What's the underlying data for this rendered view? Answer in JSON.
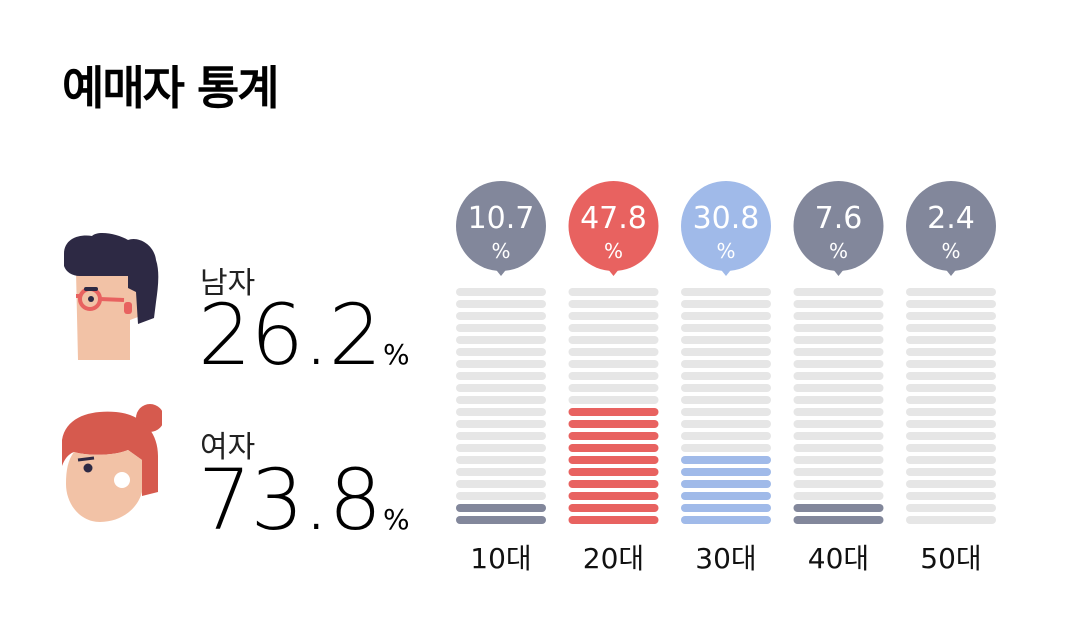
{
  "title": "예매자 통계",
  "gender": {
    "male": {
      "label": "남자",
      "value": "26.2",
      "unit": "%"
    },
    "female": {
      "label": "여자",
      "value": "73.8",
      "unit": "%"
    }
  },
  "icons": {
    "male": "man-avatar-icon",
    "female": "woman-avatar-icon"
  },
  "colors": {
    "inactive": "#e6e6e6",
    "neutral": "#82879b",
    "highlight": "#e86260",
    "secondary": "#a0bae9"
  },
  "chart_data": {
    "type": "bar",
    "categories": [
      "10대",
      "20대",
      "30대",
      "40대",
      "50대"
    ],
    "values": [
      10.7,
      47.8,
      30.8,
      7.6,
      2.4
    ],
    "value_unit": "%",
    "segments": 20,
    "ylim": [
      0,
      100
    ],
    "bar_colors": [
      "#82879b",
      "#e86260",
      "#a0bae9",
      "#82879b",
      "#82879b"
    ],
    "title": "",
    "xlabel": "",
    "ylabel": ""
  }
}
